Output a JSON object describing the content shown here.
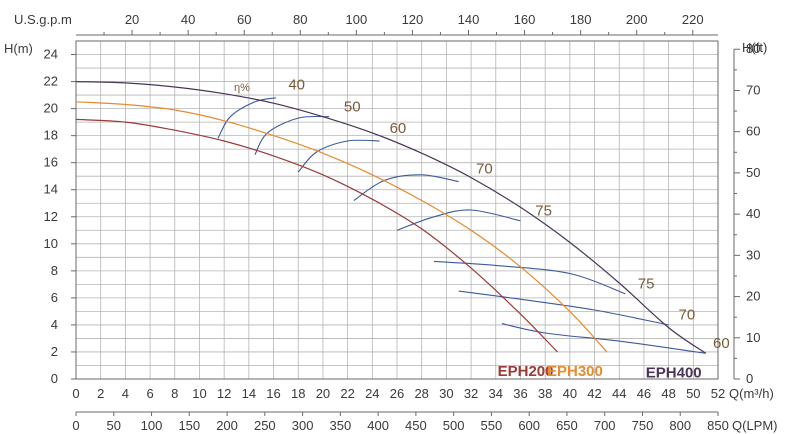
{
  "chart_data": {
    "type": "line",
    "title": "",
    "axes": {
      "x_q_m3h": {
        "label": "Q(m³/h)",
        "min": 0,
        "max": 52,
        "step": 2
      },
      "x_q_lpm": {
        "label": "Q(LPM)",
        "min": 0,
        "max": 850,
        "step": 50
      },
      "x_usgpm": {
        "label": "U.S.g.p.m",
        "min": 0,
        "max": 229,
        "ticks": [
          20,
          40,
          60,
          80,
          100,
          120,
          140,
          160,
          180,
          200,
          220
        ]
      },
      "y_head_m": {
        "label": "H(m)",
        "min": 0,
        "max": 25,
        "ticks": [
          0,
          2,
          4,
          6,
          8,
          10,
          12,
          14,
          16,
          18,
          20,
          22,
          24
        ]
      },
      "y_head_ft": {
        "label": "H(ft)",
        "min": 0,
        "max": 82,
        "ticks": [
          0,
          10,
          20,
          30,
          40,
          50,
          60,
          70,
          80
        ]
      }
    },
    "grid": true,
    "eta_label": "η%",
    "series": [
      {
        "name": "EPH200",
        "color": "#9b3a36",
        "points": [
          [
            0,
            19.2
          ],
          [
            4,
            19.0
          ],
          [
            8,
            18.4
          ],
          [
            12,
            17.6
          ],
          [
            16,
            16.5
          ],
          [
            20,
            15.1
          ],
          [
            24,
            13.3
          ],
          [
            28,
            11.1
          ],
          [
            32,
            8.2
          ],
          [
            36,
            4.8
          ],
          [
            39,
            2.0
          ]
        ]
      },
      {
        "name": "EPH300",
        "color": "#e88a2e",
        "points": [
          [
            0,
            20.5
          ],
          [
            4,
            20.3
          ],
          [
            8,
            19.9
          ],
          [
            12,
            19.1
          ],
          [
            16,
            18.0
          ],
          [
            20,
            16.7
          ],
          [
            24,
            15.1
          ],
          [
            28,
            13.2
          ],
          [
            32,
            11.0
          ],
          [
            36,
            8.3
          ],
          [
            40,
            5.0
          ],
          [
            43,
            2.0
          ]
        ]
      },
      {
        "name": "EPH400",
        "color": "#4a3558",
        "points": [
          [
            0,
            22.0
          ],
          [
            4,
            21.9
          ],
          [
            8,
            21.6
          ],
          [
            12,
            21.1
          ],
          [
            16,
            20.4
          ],
          [
            20,
            19.4
          ],
          [
            24,
            18.2
          ],
          [
            28,
            16.7
          ],
          [
            32,
            14.9
          ],
          [
            36,
            12.7
          ],
          [
            40,
            10.1
          ],
          [
            44,
            7.1
          ],
          [
            48,
            3.8
          ],
          [
            51,
            1.9
          ]
        ]
      }
    ],
    "efficiency_curves": [
      {
        "label": "40",
        "points": [
          [
            11.5,
            17.8
          ],
          [
            12.5,
            19.4
          ],
          [
            14.5,
            20.5
          ],
          [
            16.2,
            20.8
          ]
        ]
      },
      {
        "label": "50",
        "points": [
          [
            14.5,
            16.6
          ],
          [
            15.5,
            18.2
          ],
          [
            18,
            19.3
          ],
          [
            20.5,
            19.4
          ]
        ]
      },
      {
        "label": "60",
        "points": [
          [
            18,
            15.3
          ],
          [
            19.5,
            16.8
          ],
          [
            22,
            17.6
          ],
          [
            24.6,
            17.6
          ]
        ]
      },
      {
        "label": "70",
        "points": [
          [
            22.5,
            13.2
          ],
          [
            25,
            14.7
          ],
          [
            28,
            15.1
          ],
          [
            31,
            14.6
          ]
        ]
      },
      {
        "label": "75",
        "points": [
          [
            26,
            11.0
          ],
          [
            29,
            12.0
          ],
          [
            32,
            12.5
          ],
          [
            36,
            11.7
          ]
        ]
      },
      {
        "label": "75",
        "points": [
          [
            29,
            8.7
          ],
          [
            34,
            8.4
          ],
          [
            40,
            7.8
          ],
          [
            44.5,
            6.3
          ]
        ]
      },
      {
        "label": "70",
        "points": [
          [
            31,
            6.5
          ],
          [
            36,
            5.9
          ],
          [
            42,
            5.1
          ],
          [
            48,
            4.0
          ]
        ]
      },
      {
        "label": "60",
        "points": [
          [
            34.5,
            4.1
          ],
          [
            38,
            3.4
          ],
          [
            44,
            2.8
          ],
          [
            51,
            1.9
          ]
        ]
      }
    ]
  }
}
